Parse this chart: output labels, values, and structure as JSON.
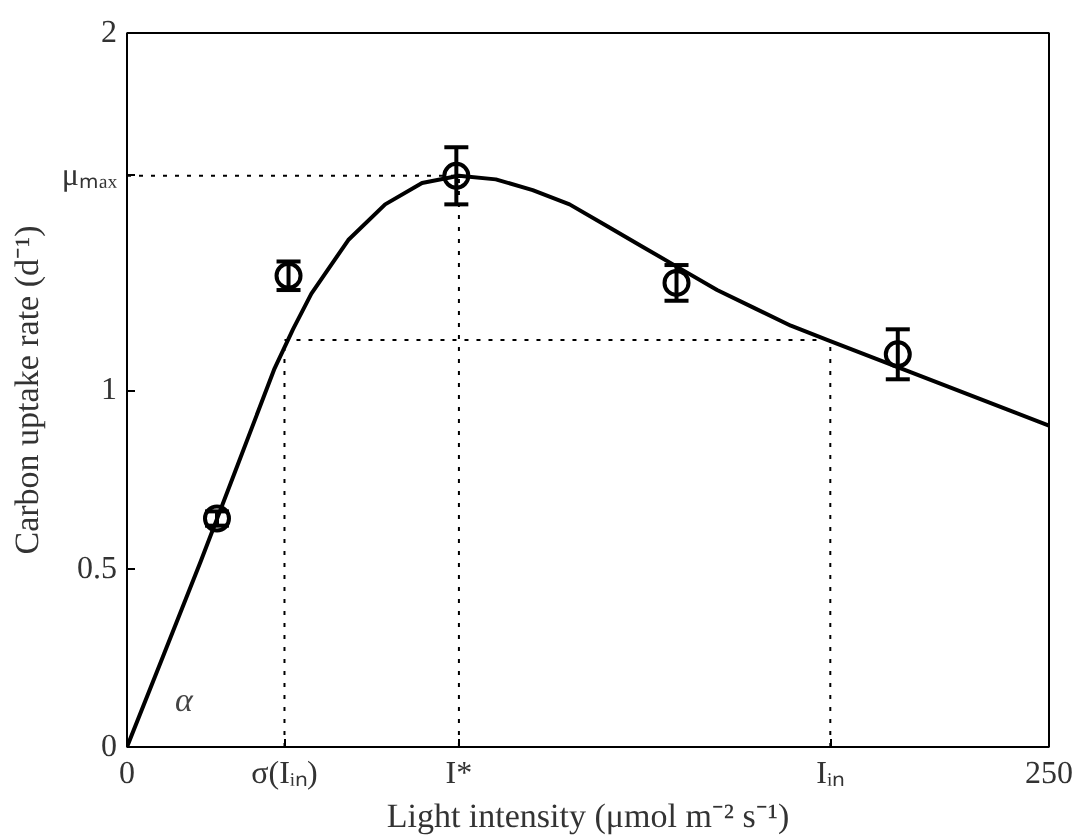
{
  "chart_data": {
    "type": "scatter",
    "xlabel": "Light intensity (μmol m⁻² s⁻¹)",
    "ylabel": "Carbon uptake rate (d⁻¹)",
    "xlim": [
      0,
      250
    ],
    "ylim": [
      0,
      2
    ],
    "xticks": [
      0,
      {
        "value": 42.7,
        "label": "σ(Iᵢₙ)"
      },
      {
        "value": 90,
        "label": "I*"
      },
      {
        "value": 190.7,
        "label": "Iᵢₙ"
      },
      250
    ],
    "yticks": [
      0,
      0.5,
      1,
      {
        "value": 1.6,
        "label": "μₘₐₓ"
      },
      2
    ],
    "grid": false,
    "series": [
      {
        "type": "line",
        "color": "#000000",
        "line_style": "dotted",
        "x": [
          0,
          90
        ],
        "values": [
          1.6,
          1.6
        ]
      },
      {
        "type": "line",
        "color": "#000000",
        "line_style": "dotted",
        "x": [
          90,
          90
        ],
        "values": [
          0,
          1.6
        ]
      },
      {
        "type": "line",
        "color": "#000000",
        "line_style": "dotted",
        "x": [
          42.7,
          190.7
        ],
        "values": [
          1.14,
          1.14
        ]
      },
      {
        "type": "line",
        "color": "#000000",
        "line_style": "dotted",
        "x": [
          42.7,
          42.7
        ],
        "values": [
          0,
          1.14
        ]
      },
      {
        "type": "line",
        "color": "#000000",
        "line_style": "dotted",
        "x": [
          190.7,
          190.7
        ],
        "values": [
          0,
          1.14
        ]
      },
      {
        "type": "line",
        "color": "#000000",
        "line_style": "solid",
        "x": [
          0,
          10,
          20,
          30,
          40,
          45,
          50,
          60,
          70,
          80,
          90,
          100,
          110,
          120,
          130,
          140,
          150,
          160,
          170,
          180,
          190,
          200,
          210,
          220,
          230,
          240,
          250
        ],
        "values": [
          0,
          0.26,
          0.52,
          0.79,
          1.06,
          1.17,
          1.27,
          1.42,
          1.52,
          1.58,
          1.6,
          1.59,
          1.56,
          1.52,
          1.46,
          1.4,
          1.34,
          1.28,
          1.23,
          1.18,
          1.14,
          1.1,
          1.06,
          1.02,
          0.98,
          0.94,
          0.9
        ]
      },
      {
        "color": "#000000",
        "marker": "circle",
        "x": [
          24.4,
          43.8,
          89.3,
          149,
          209
        ],
        "values": [
          0.64,
          1.32,
          1.6,
          1.3,
          1.1
        ],
        "errors": [
          0.02,
          0.04,
          0.08,
          0.05,
          0.07
        ]
      }
    ],
    "annotations": [
      "α"
    ]
  }
}
